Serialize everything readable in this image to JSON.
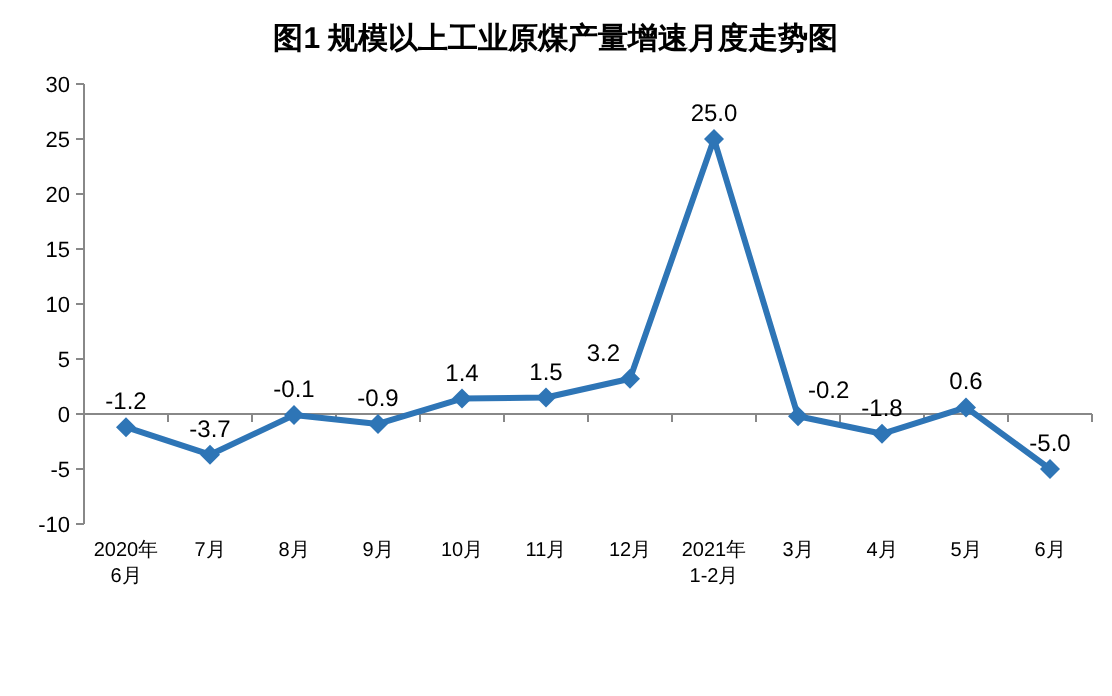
{
  "chart_data": {
    "type": "line",
    "title": "图1  规模以上工业原煤产量增速月度走势图",
    "categories": [
      "2020年\n6月",
      "7月",
      "8月",
      "9月",
      "10月",
      "11月",
      "12月",
      "2021年\n1-2月",
      "3月",
      "4月",
      "5月",
      "6月"
    ],
    "values": [
      -1.2,
      -3.7,
      -0.1,
      -0.9,
      1.4,
      1.5,
      3.2,
      25.0,
      -0.2,
      -1.8,
      0.6,
      -5.0
    ],
    "color": "#2e75b6",
    "marker": "diamond",
    "line_style": "solid",
    "value_labels": [
      "-1.2",
      "-3.7",
      "-0.1",
      "-0.9",
      "1.4",
      "1.5",
      "3.2",
      "25.0",
      "-0.2",
      "-1.8",
      "0.6",
      "-5.0"
    ],
    "ylim": [
      -10,
      30
    ],
    "yticks": [
      -10,
      -5,
      0,
      5,
      10,
      15,
      20,
      25,
      30
    ]
  }
}
